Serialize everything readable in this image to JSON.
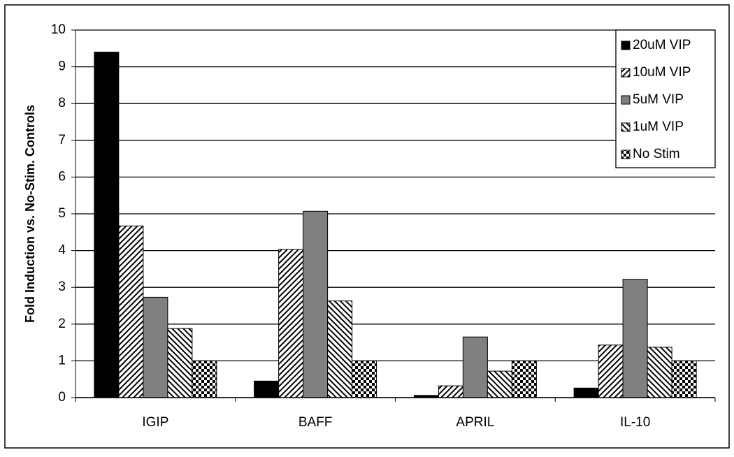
{
  "chart_data": {
    "type": "bar",
    "y_label": "Fold Induction vs. No-Stim. Controls",
    "categories": [
      "IGIP",
      "BAFF",
      "APRIL",
      "IL-10"
    ],
    "series": [
      {
        "name": "20uM VIP",
        "color": "#000000",
        "values": [
          9.4,
          0.45,
          0.06,
          0.26
        ]
      },
      {
        "name": "10uM VIP",
        "color": "#ffffff",
        "pattern": "hatch-up",
        "values": [
          4.67,
          4.03,
          0.32,
          1.43
        ]
      },
      {
        "name": "5uM VIP",
        "color": "#808080",
        "values": [
          2.73,
          5.07,
          1.65,
          3.22
        ]
      },
      {
        "name": "1uM VIP",
        "color": "#ffffff",
        "pattern": "hatch-down",
        "values": [
          1.88,
          2.63,
          0.72,
          1.37
        ]
      },
      {
        "name": "No Stim",
        "color": "#ffffff",
        "pattern": "checker",
        "values": [
          1.0,
          1.0,
          1.0,
          1.0
        ]
      }
    ],
    "ylim": [
      0,
      10
    ],
    "yticks": [
      0,
      1,
      2,
      3,
      4,
      5,
      6,
      7,
      8,
      9,
      10
    ],
    "grid": true,
    "legend": "top-right"
  }
}
